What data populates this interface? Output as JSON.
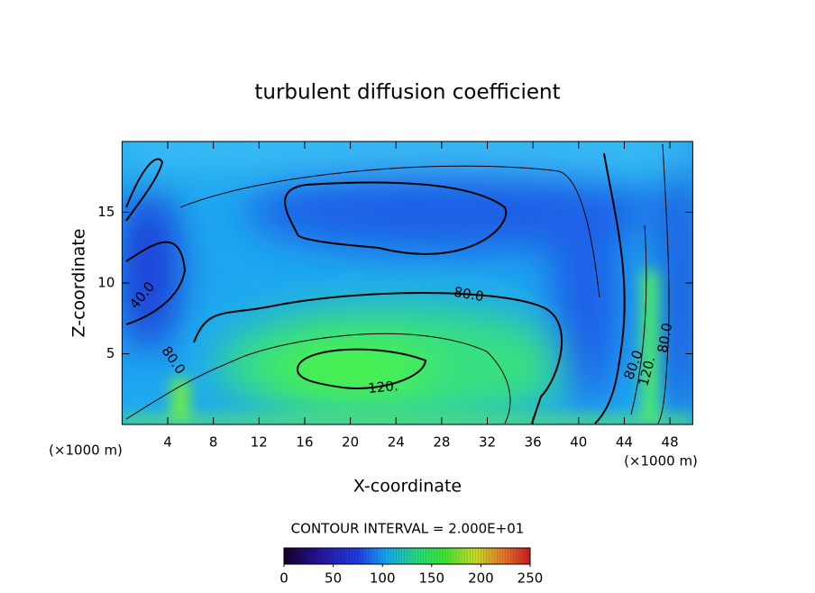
{
  "chart_data": {
    "type": "contour",
    "title": "turbulent diffusion coefficient",
    "xlabel": "X-coordinate",
    "ylabel": "Z-coordinate",
    "x_unit": "(×1000 m)",
    "y_unit": "(×1000 m)",
    "xlim": [
      0,
      50
    ],
    "xticks": [
      4,
      8,
      12,
      16,
      20,
      24,
      28,
      32,
      36,
      40,
      44,
      48
    ],
    "ylim": [
      0,
      20
    ],
    "yticks": [
      5,
      10,
      15
    ],
    "contour_labels": [
      "40.0",
      "80.0",
      "80.0",
      "120.",
      "80.0",
      "120.",
      "80.0"
    ],
    "annotation": "CONTOUR INTERVAL = 2.000E+01",
    "clim": [
      0,
      250
    ],
    "cticks": [
      0,
      50,
      100,
      150,
      200,
      250
    ]
  }
}
